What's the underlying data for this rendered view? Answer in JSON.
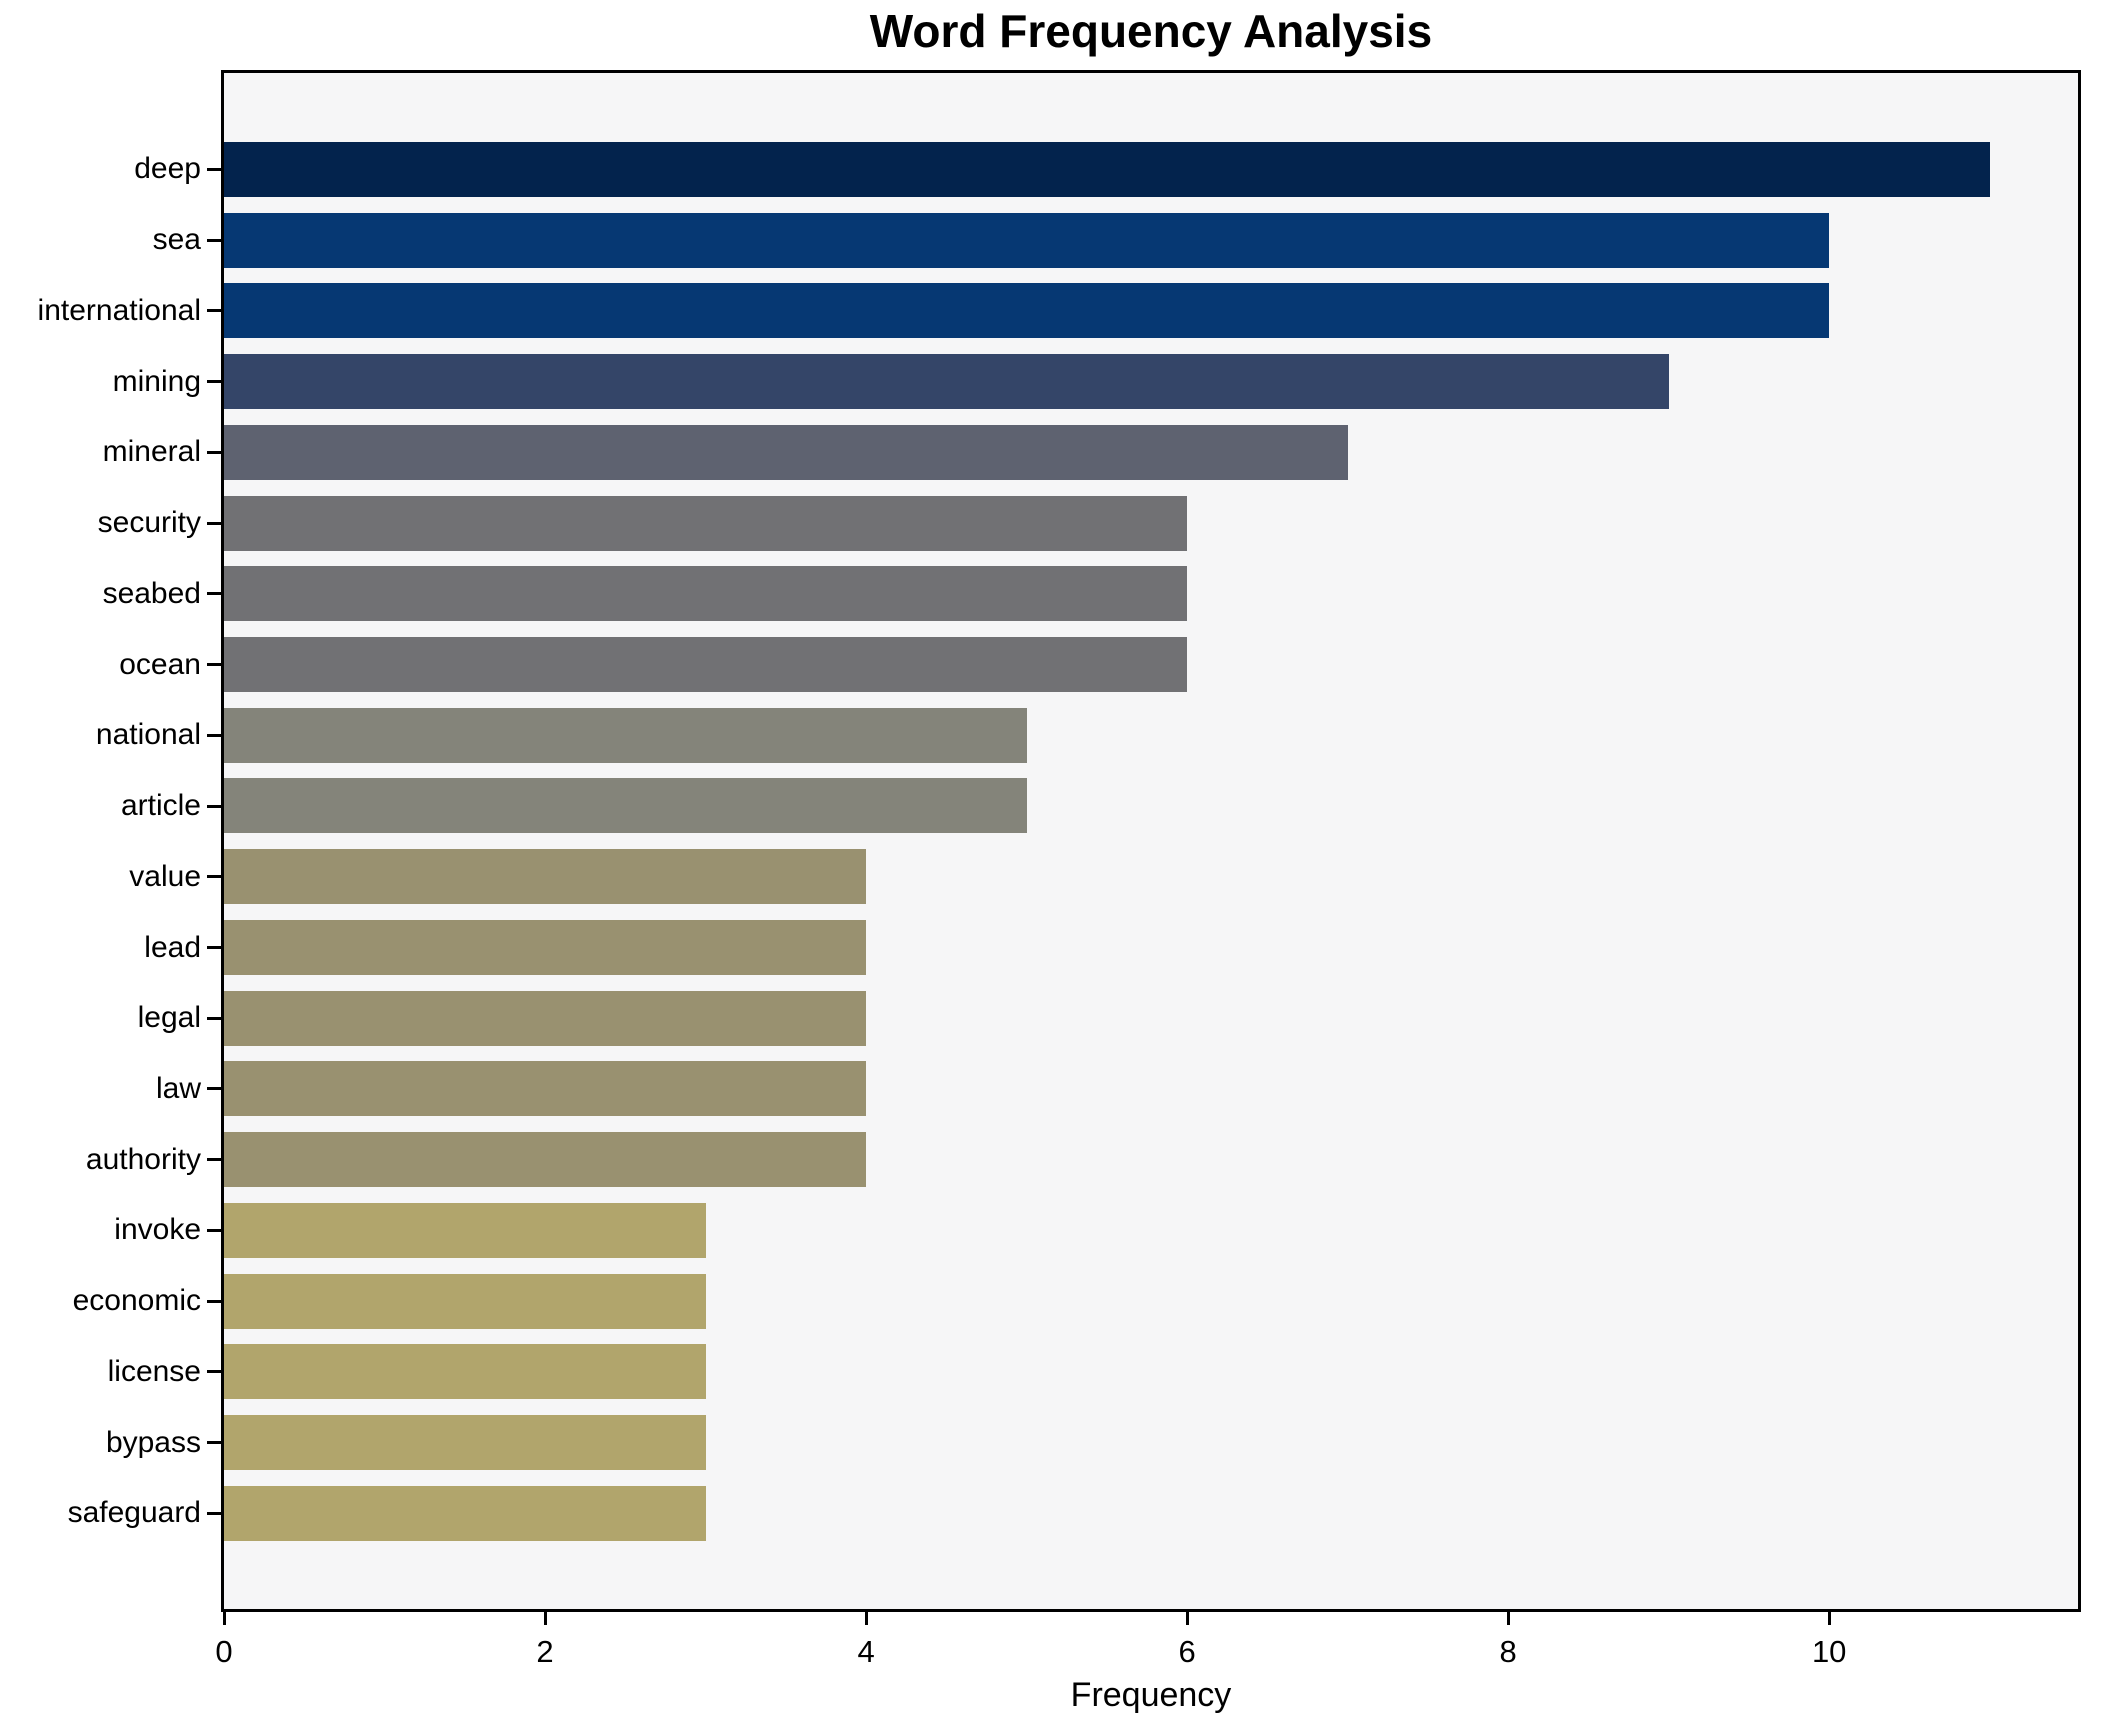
{
  "chart_data": {
    "type": "bar",
    "orientation": "horizontal",
    "title": "Word Frequency Analysis",
    "xlabel": "Frequency",
    "ylabel": "",
    "categories": [
      "deep",
      "sea",
      "international",
      "mining",
      "mineral",
      "security",
      "seabed",
      "ocean",
      "national",
      "article",
      "value",
      "lead",
      "legal",
      "law",
      "authority",
      "invoke",
      "economic",
      "license",
      "bypass",
      "safeguard"
    ],
    "values": [
      11,
      10,
      10,
      9,
      7,
      6,
      6,
      6,
      5,
      5,
      4,
      4,
      4,
      4,
      4,
      3,
      3,
      3,
      3,
      3
    ],
    "bar_colors": [
      "#03234d",
      "#063873",
      "#063873",
      "#344568",
      "#5e6270",
      "#717174",
      "#717174",
      "#717174",
      "#84847a",
      "#84847a",
      "#999170",
      "#999170",
      "#999170",
      "#999170",
      "#999170",
      "#b1a56c",
      "#b1a56c",
      "#b1a56c",
      "#b1a56c",
      "#b1a56c"
    ],
    "xticks": [
      0,
      2,
      4,
      6,
      8,
      10
    ],
    "xlim": [
      0,
      11.55
    ],
    "grid": false,
    "legend": null,
    "plot_bg": "#f6f6f7",
    "figure_bg": "#ffffff",
    "spine_color": "#000000",
    "text_color": "#000000"
  }
}
